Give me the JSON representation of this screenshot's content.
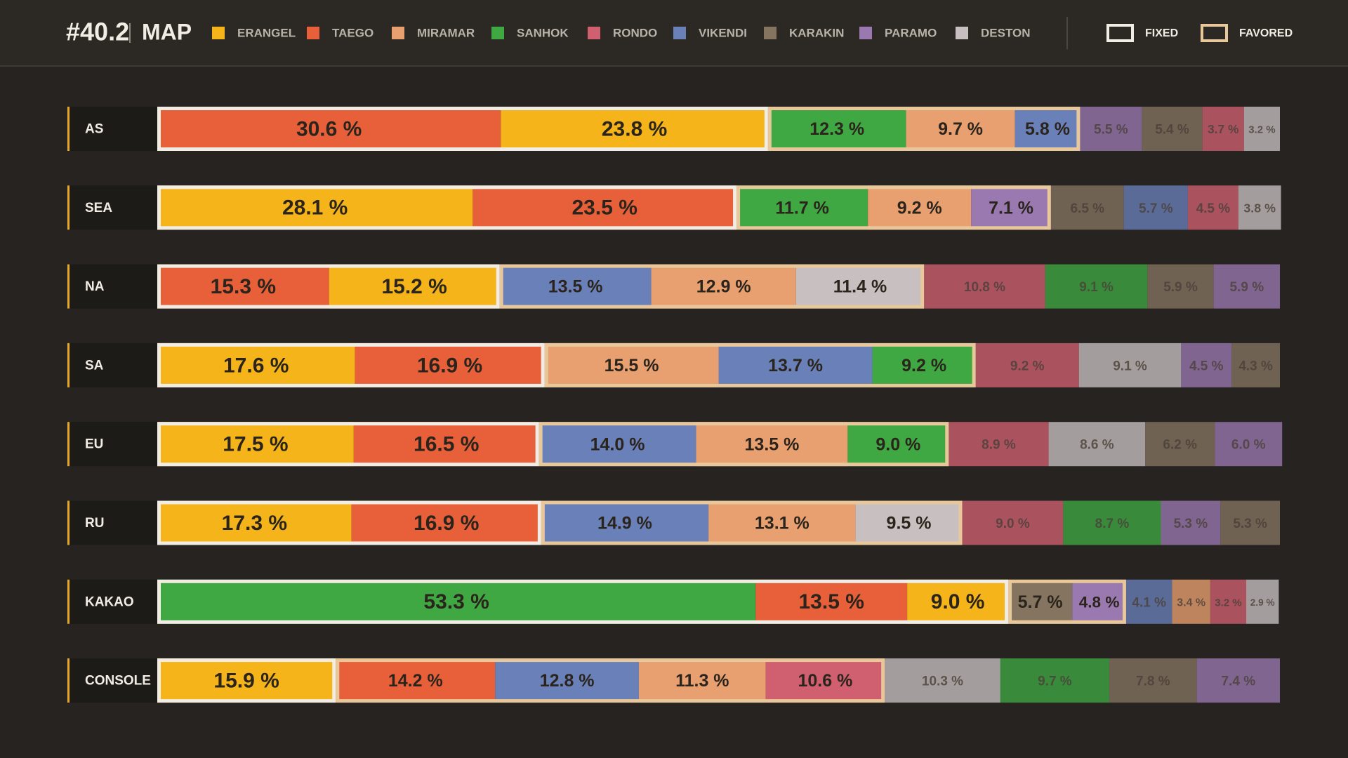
{
  "chart_data": {
    "type": "stacked-bar",
    "title": "#40.2",
    "subtitle": "MAP",
    "xlim": [
      0,
      100
    ],
    "legend": [
      {
        "name": "ERANGEL",
        "color": "#f4b41a"
      },
      {
        "name": "TAEGO",
        "color": "#e8603a"
      },
      {
        "name": "MIRAMAR",
        "color": "#e8a070"
      },
      {
        "name": "SANHOK",
        "color": "#3fa843"
      },
      {
        "name": "RONDO",
        "color": "#d06070"
      },
      {
        "name": "VIKENDI",
        "color": "#6a80b8"
      },
      {
        "name": "KARAKIN",
        "color": "#857560"
      },
      {
        "name": "PARAMO",
        "color": "#9a78b0"
      },
      {
        "name": "DESTON",
        "color": "#c8c0c0"
      }
    ],
    "frame_legend": [
      {
        "name": "FIXED",
        "key": "fixed",
        "color": "#f2ede4"
      },
      {
        "name": "FAVORED",
        "key": "favored",
        "color": "#e8c79a"
      }
    ],
    "rows": [
      {
        "label": "AS",
        "values": [
          30.6,
          23.8,
          12.3,
          9.7,
          5.8,
          5.5,
          5.4,
          3.7,
          3.2
        ],
        "value_labels": [
          "30.6 %",
          "23.8 %",
          "12.3 %",
          "9.7 %",
          "5.8 %",
          "5.5 %",
          "5.4 %",
          "3.7 %",
          "3.2 %"
        ],
        "colors": [
          "#e8603a",
          "#f4b41a",
          "#3fa843",
          "#e8a070",
          "#6a80b8",
          "#9a78b0",
          "#857560",
          "#d06070",
          "#c8c0c0"
        ],
        "frames": [
          "fixed",
          "fixed",
          "favored",
          "favored",
          "favored",
          null,
          null,
          null,
          null
        ]
      },
      {
        "label": "SEA",
        "values": [
          28.1,
          23.5,
          11.7,
          9.2,
          7.1,
          6.5,
          5.7,
          4.5,
          3.8
        ],
        "value_labels": [
          "28.1 %",
          "23.5 %",
          "11.7 %",
          "9.2 %",
          "7.1 %",
          "6.5 %",
          "5.7 %",
          "4.5 %",
          "3.8 %"
        ],
        "colors": [
          "#f4b41a",
          "#e8603a",
          "#3fa843",
          "#e8a070",
          "#9a78b0",
          "#857560",
          "#6a80b8",
          "#d06070",
          "#c8c0c0"
        ],
        "frames": [
          "fixed",
          "fixed",
          "favored",
          "favored",
          "favored",
          null,
          null,
          null,
          null
        ]
      },
      {
        "label": "NA",
        "values": [
          15.3,
          15.2,
          13.5,
          12.9,
          11.4,
          10.8,
          9.1,
          5.9,
          5.9
        ],
        "value_labels": [
          "15.3 %",
          "15.2 %",
          "13.5 %",
          "12.9 %",
          "11.4 %",
          "10.8 %",
          "9.1 %",
          "5.9 %",
          "5.9 %"
        ],
        "colors": [
          "#e8603a",
          "#f4b41a",
          "#6a80b8",
          "#e8a070",
          "#c8c0c0",
          "#d06070",
          "#3fa843",
          "#857560",
          "#9a78b0"
        ],
        "frames": [
          "fixed",
          "fixed",
          "favored",
          "favored",
          "favored",
          null,
          null,
          null,
          null
        ]
      },
      {
        "label": "SA",
        "values": [
          17.6,
          16.9,
          15.5,
          13.7,
          9.2,
          9.2,
          9.1,
          4.5,
          4.3
        ],
        "value_labels": [
          "17.6 %",
          "16.9 %",
          "15.5 %",
          "13.7 %",
          "9.2 %",
          "9.2 %",
          "9.1 %",
          "4.5 %",
          "4.3 %"
        ],
        "colors": [
          "#f4b41a",
          "#e8603a",
          "#e8a070",
          "#6a80b8",
          "#3fa843",
          "#d06070",
          "#c8c0c0",
          "#9a78b0",
          "#857560"
        ],
        "frames": [
          "fixed",
          "fixed",
          "favored",
          "favored",
          "favored",
          null,
          null,
          null,
          null
        ]
      },
      {
        "label": "EU",
        "values": [
          17.5,
          16.5,
          14.0,
          13.5,
          9.0,
          8.9,
          8.6,
          6.2,
          6.0
        ],
        "value_labels": [
          "17.5 %",
          "16.5 %",
          "14.0 %",
          "13.5 %",
          "9.0 %",
          "8.9 %",
          "8.6 %",
          "6.2 %",
          "6.0 %"
        ],
        "colors": [
          "#f4b41a",
          "#e8603a",
          "#6a80b8",
          "#e8a070",
          "#3fa843",
          "#d06070",
          "#c8c0c0",
          "#857560",
          "#9a78b0"
        ],
        "frames": [
          "fixed",
          "fixed",
          "favored",
          "favored",
          "favored",
          null,
          null,
          null,
          null
        ]
      },
      {
        "label": "RU",
        "values": [
          17.3,
          16.9,
          14.9,
          13.1,
          9.5,
          9.0,
          8.7,
          5.3,
          5.3
        ],
        "value_labels": [
          "17.3 %",
          "16.9 %",
          "14.9 %",
          "13.1 %",
          "9.5 %",
          "9.0 %",
          "8.7 %",
          "5.3 %",
          "5.3 %"
        ],
        "colors": [
          "#f4b41a",
          "#e8603a",
          "#6a80b8",
          "#e8a070",
          "#c8c0c0",
          "#d06070",
          "#3fa843",
          "#9a78b0",
          "#857560"
        ],
        "frames": [
          "fixed",
          "fixed",
          "favored",
          "favored",
          "favored",
          null,
          null,
          null,
          null
        ]
      },
      {
        "label": "KAKAO",
        "values": [
          53.3,
          13.5,
          9.0,
          5.7,
          4.8,
          4.1,
          3.4,
          3.2,
          2.9
        ],
        "value_labels": [
          "53.3 %",
          "13.5 %",
          "9.0 %",
          "5.7 %",
          "4.8 %",
          "4.1 %",
          "3.4 %",
          "3.2 %",
          "2.9 %"
        ],
        "colors": [
          "#3fa843",
          "#e8603a",
          "#f4b41a",
          "#857560",
          "#9a78b0",
          "#6a80b8",
          "#e8a070",
          "#d06070",
          "#c8c0c0"
        ],
        "frames": [
          "fixed",
          "fixed",
          "fixed",
          "favored",
          "favored",
          null,
          null,
          null,
          null
        ]
      },
      {
        "label": "CONSOLE",
        "values": [
          15.9,
          14.2,
          12.8,
          11.3,
          10.6,
          10.3,
          9.7,
          7.8,
          7.4
        ],
        "value_labels": [
          "15.9 %",
          "14.2 %",
          "12.8 %",
          "11.3 %",
          "10.6 %",
          "10.3 %",
          "9.7 %",
          "7.8 %",
          "7.4 %"
        ],
        "colors": [
          "#f4b41a",
          "#e8603a",
          "#6a80b8",
          "#e8a070",
          "#d06070",
          "#c8c0c0",
          "#3fa843",
          "#857560",
          "#9a78b0"
        ],
        "frames": [
          "fixed",
          "favored",
          "favored",
          "favored",
          "favored",
          null,
          null,
          null,
          null
        ]
      }
    ]
  }
}
